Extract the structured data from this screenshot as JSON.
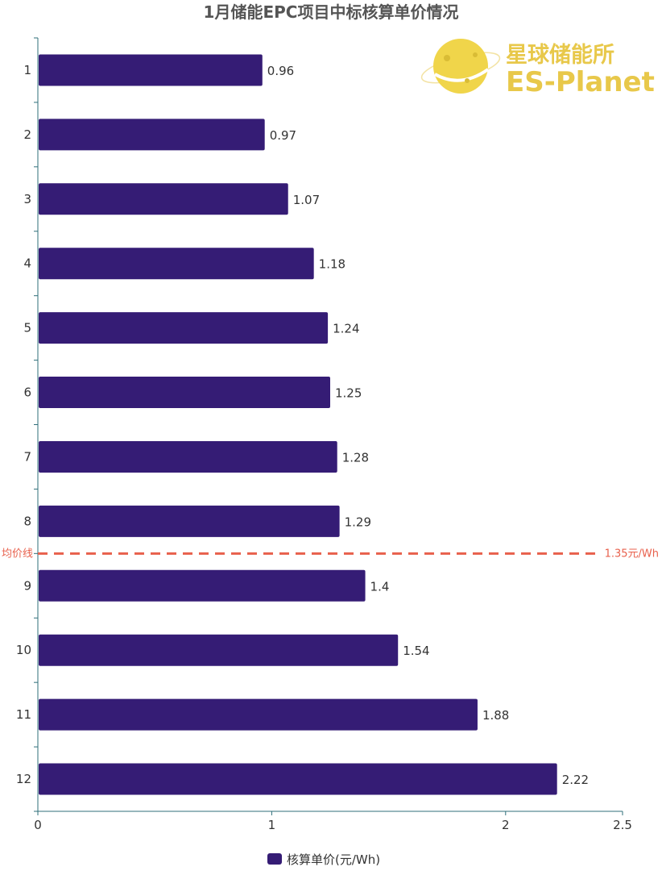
{
  "chart_data": {
    "type": "bar",
    "orientation": "horizontal",
    "title": "1月储能EPC项目中标核算单价情况",
    "categories": [
      "1",
      "2",
      "3",
      "4",
      "5",
      "6",
      "7",
      "8",
      "9",
      "10",
      "11",
      "12"
    ],
    "series": [
      {
        "name": "核算单价(元/Wh)",
        "values": [
          0.96,
          0.97,
          1.07,
          1.18,
          1.24,
          1.25,
          1.28,
          1.29,
          1.4,
          1.54,
          1.88,
          2.22
        ],
        "color": "#351c75"
      }
    ],
    "xlim": [
      0,
      2.5
    ],
    "x_ticks": [
      "0",
      "1",
      "2",
      "2.5"
    ],
    "reference_line": {
      "value": 1.35,
      "label_left": "均价线",
      "label_right": "1.35元/Wh",
      "color": "#e8604c",
      "style": "dashed"
    },
    "grid": false,
    "legend_position": "bottom"
  },
  "logo": {
    "cn": "星球储能所",
    "en": "ES-Planet",
    "color": "#e8c84a"
  }
}
